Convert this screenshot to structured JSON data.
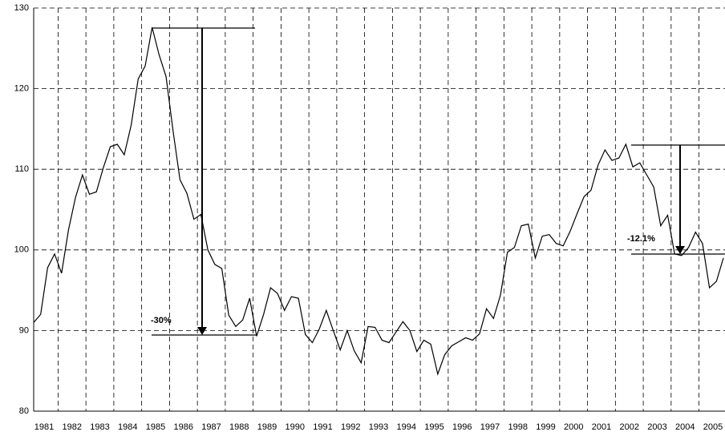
{
  "chart_data": {
    "type": "line",
    "categories": [
      "1981",
      null,
      null,
      null,
      "1982",
      null,
      null,
      null,
      "1983",
      null,
      null,
      null,
      "1984",
      null,
      null,
      null,
      "1985",
      null,
      null,
      null,
      "1986",
      null,
      null,
      null,
      "1987",
      null,
      null,
      null,
      "1988",
      null,
      null,
      null,
      "1989",
      null,
      null,
      null,
      "1990",
      null,
      null,
      null,
      "1991",
      null,
      null,
      null,
      "1992",
      null,
      null,
      null,
      "1993",
      null,
      null,
      null,
      "1994",
      null,
      null,
      null,
      "1995",
      null,
      null,
      null,
      "1996",
      null,
      null,
      null,
      "1997",
      null,
      null,
      null,
      "1998",
      null,
      null,
      null,
      "1999",
      null,
      null,
      null,
      "2000",
      null,
      null,
      null,
      "2001",
      null,
      null,
      null,
      "2002",
      null,
      null,
      null,
      "2003",
      null,
      null,
      null,
      "2004",
      null,
      null,
      null,
      "2005",
      null,
      null,
      null
    ],
    "values": [
      91,
      92,
      97.8,
      99.5,
      97.1,
      102.5,
      106.5,
      109.3,
      106.9,
      107.2,
      110.2,
      112.8,
      113.1,
      111.8,
      115.5,
      121.2,
      122.8,
      127.6,
      124.2,
      121.5,
      114.8,
      108.7,
      107,
      103.8,
      104.4,
      100,
      98.2,
      97.7,
      91.9,
      90.5,
      91.3,
      94,
      89.3,
      92,
      95.3,
      94.6,
      92.5,
      94.2,
      94,
      89.5,
      88.5,
      90.2,
      92.5,
      90,
      87.6,
      90,
      87.5,
      86,
      90.5,
      90.4,
      88.8,
      88.5,
      89.8,
      91.1,
      90,
      87.4,
      88.8,
      88.3,
      84.6,
      87,
      88.1,
      88.6,
      89.1,
      88.8,
      89.6,
      92.7,
      91.5,
      94.4,
      99.7,
      100.3,
      103,
      103.2,
      99,
      101.7,
      101.9,
      100.8,
      100.5,
      102.3,
      104.5,
      106.6,
      107.4,
      110.5,
      112.4,
      111.1,
      111.4,
      113.1,
      110.3,
      110.8,
      109.3,
      107.8,
      103,
      104.3,
      99.5,
      99.3,
      100.3,
      102.2,
      100.8,
      95.3,
      96.1,
      99
    ],
    "color": "#000000",
    "ylim": [
      80,
      130
    ],
    "yticks": [
      80,
      90,
      100,
      110,
      120,
      130
    ],
    "grid": true,
    "annotations": [
      "-30%",
      "-12.1%"
    ]
  }
}
